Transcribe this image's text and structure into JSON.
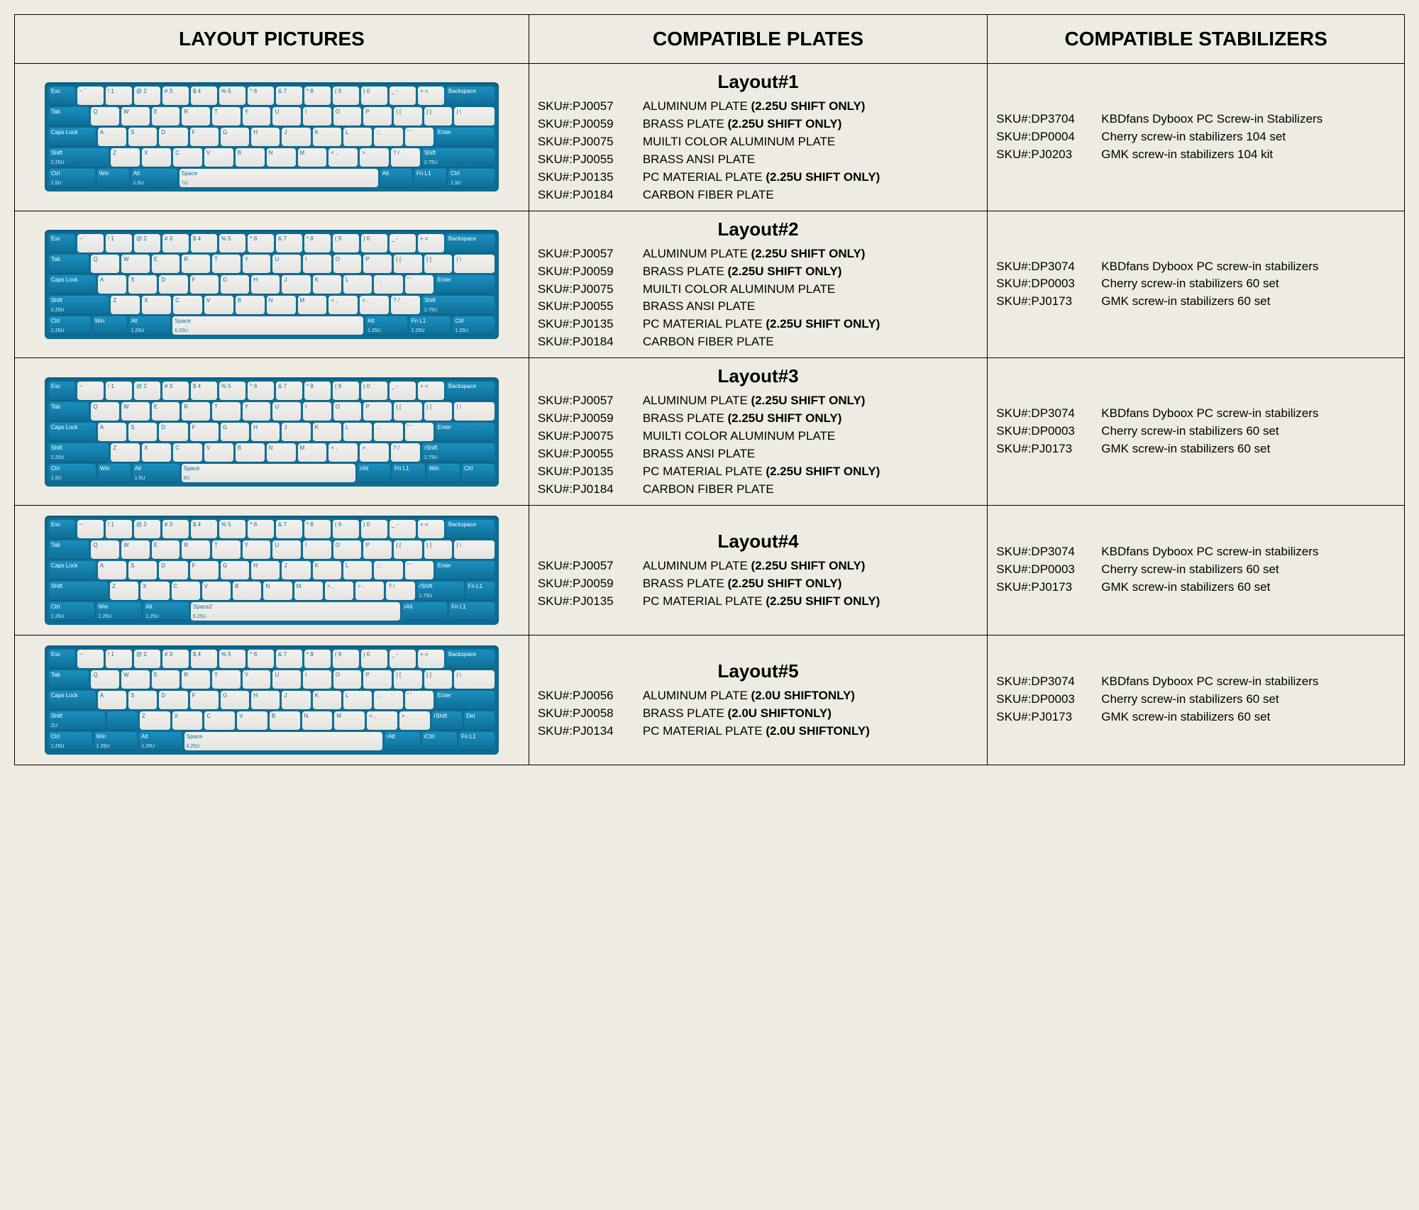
{
  "headers": {
    "pictures": "LAYOUT PICTURES",
    "plates": "COMPATIBLE PLATES",
    "stabs": "COMPATIBLE STABILIZERS"
  },
  "colors": {
    "page_bg": "#edebe2",
    "border": "#000000",
    "kb_case": "#0e6f97",
    "key_light_top": "#f2f1ee",
    "key_light_bot": "#e5e4e0",
    "key_mod_top": "#1a8fbf",
    "key_mod_bot": "#0e6f97",
    "key_legend": "#0e6f97",
    "mod_legend": "#ffffff"
  },
  "keyboard": {
    "row0": [
      "Esc",
      "~ `",
      "! 1",
      "@ 2",
      "# 3",
      "$ 4",
      "% 5",
      "^ 6",
      "& 7",
      "* 8",
      "( 9",
      ") 0",
      "_ -",
      "+ =",
      "Backspace"
    ],
    "row1": [
      "Tab",
      "Q",
      "W",
      "E",
      "R",
      "T",
      "Y",
      "U",
      "I",
      "O",
      "P",
      "{ [",
      "} ]",
      "| \\"
    ],
    "row2": [
      "Caps Lock",
      "A",
      "S",
      "D",
      "F",
      "G",
      "H",
      "J",
      "K",
      "L",
      ": ;",
      "\" '",
      "Enter"
    ],
    "labels": {
      "shift": "Shift",
      "rshift": "rShift",
      "ctrl": "Ctrl",
      "rctrl": "rCtrl",
      "win": "Win",
      "alt": "Alt",
      "ralt": "rAlt",
      "fn": "Fn L1",
      "space": "Space",
      "space2": "Space2",
      "del": "Del"
    },
    "bottom_sizes": {
      "u125": "1.25U",
      "u15": "1.5U",
      "u175": "1.75U",
      "u2": "2U",
      "u225": "2.25U",
      "u275": "2.75U",
      "u6": "6U",
      "u625": "6.25U",
      "u7": "7U"
    }
  },
  "layouts": [
    {
      "title": "Layout#1",
      "kb_variant": "A",
      "plates": [
        {
          "sku": "SKU#:PJ0057",
          "desc": "ALUMINUM PLATE",
          "bold": "(2.25U SHIFT ONLY)"
        },
        {
          "sku": "SKU#:PJ0059",
          "desc": "BRASS PLATE",
          "bold": "(2.25U SHIFT ONLY)"
        },
        {
          "sku": "SKU#:PJ0075",
          "desc": "MUILTI COLOR ALUMINUM PLATE",
          "bold": ""
        },
        {
          "sku": "SKU#:PJ0055",
          "desc": "BRASS ANSI PLATE",
          "bold": ""
        },
        {
          "sku": "SKU#:PJ0135",
          "desc": "PC MATERIAL PLATE",
          "bold": "(2.25U SHIFT ONLY)"
        },
        {
          "sku": "SKU#:PJ0184",
          "desc": "CARBON FIBER PLATE",
          "bold": ""
        }
      ],
      "stabs": [
        {
          "sku": "SKU#:DP3704",
          "desc": "KBDfans Dyboox PC Screw-in Stabilizers"
        },
        {
          "sku": "SKU#:DP0004",
          "desc": "Cherry screw-in stabilizers 104 set"
        },
        {
          "sku": "SKU#:PJ0203",
          "desc": "GMK screw-in stabilizers 104 kit"
        }
      ]
    },
    {
      "title": "Layout#2",
      "kb_variant": "B",
      "plates": [
        {
          "sku": "SKU#:PJ0057",
          "desc": "ALUMINUM PLATE",
          "bold": "(2.25U SHIFT ONLY)"
        },
        {
          "sku": "SKU#:PJ0059",
          "desc": "BRASS PLATE",
          "bold": "(2.25U SHIFT ONLY)"
        },
        {
          "sku": "SKU#:PJ0075",
          "desc": "MUILTI COLOR ALUMINUM PLATE",
          "bold": ""
        },
        {
          "sku": "SKU#:PJ0055",
          "desc": "BRASS ANSI PLATE",
          "bold": ""
        },
        {
          "sku": "SKU#:PJ0135",
          "desc": "PC MATERIAL PLATE",
          "bold": "(2.25U SHIFT ONLY)"
        },
        {
          "sku": "SKU#:PJ0184",
          "desc": "CARBON FIBER PLATE",
          "bold": ""
        }
      ],
      "stabs": [
        {
          "sku": "SKU#:DP3074",
          "desc": "KBDfans Dyboox PC screw-in stabilizers"
        },
        {
          "sku": "SKU#:DP0003",
          "desc": "Cherry screw-in stabilizers 60 set"
        },
        {
          "sku": "SKU#:PJ0173",
          "desc": "GMK screw-in stabilizers 60 set"
        }
      ]
    },
    {
      "title": "Layout#3",
      "kb_variant": "C",
      "plates": [
        {
          "sku": "SKU#:PJ0057",
          "desc": "ALUMINUM PLATE",
          "bold": "(2.25U SHIFT ONLY)"
        },
        {
          "sku": "SKU#:PJ0059",
          "desc": "BRASS PLATE",
          "bold": "(2.25U SHIFT ONLY)"
        },
        {
          "sku": "SKU#:PJ0075",
          "desc": "MUILTI COLOR ALUMINUM PLATE",
          "bold": ""
        },
        {
          "sku": "SKU#:PJ0055",
          "desc": "BRASS ANSI PLATE",
          "bold": ""
        },
        {
          "sku": "SKU#:PJ0135",
          "desc": "PC MATERIAL PLATE",
          "bold": "(2.25U SHIFT ONLY)"
        },
        {
          "sku": "SKU#:PJ0184",
          "desc": "CARBON FIBER PLATE",
          "bold": ""
        }
      ],
      "stabs": [
        {
          "sku": "SKU#:DP3074",
          "desc": "KBDfans Dyboox PC screw-in stabilizers"
        },
        {
          "sku": "SKU#:DP0003",
          "desc": "Cherry screw-in stabilizers 60 set"
        },
        {
          "sku": "SKU#:PJ0173",
          "desc": "GMK screw-in stabilizers 60 set"
        }
      ]
    },
    {
      "title": "Layout#4",
      "kb_variant": "D",
      "plates": [
        {
          "sku": "SKU#:PJ0057",
          "desc": "ALUMINUM PLATE",
          "bold": "(2.25U SHIFT ONLY)"
        },
        {
          "sku": "SKU#:PJ0059",
          "desc": "BRASS PLATE",
          "bold": "(2.25U SHIFT ONLY)"
        },
        {
          "sku": "SKU#:PJ0135",
          "desc": "PC MATERIAL PLATE",
          "bold": "(2.25U SHIFT ONLY)"
        }
      ],
      "stabs": [
        {
          "sku": "SKU#:DP3074",
          "desc": "KBDfans Dyboox PC screw-in stabilizers"
        },
        {
          "sku": "SKU#:DP0003",
          "desc": "Cherry screw-in stabilizers 60 set"
        },
        {
          "sku": "SKU#:PJ0173",
          "desc": "GMK screw-in stabilizers 60 set"
        }
      ]
    },
    {
      "title": "Layout#5",
      "kb_variant": "E",
      "plates": [
        {
          "sku": "SKU#:PJ0056",
          "desc": "ALUMINUM PLATE",
          "bold": "(2.0U SHIFTONLY)"
        },
        {
          "sku": "SKU#:PJ0058",
          "desc": "BRASS PLATE",
          "bold": "(2.0U SHIFTONLY)"
        },
        {
          "sku": "SKU#:PJ0134",
          "desc": "PC MATERIAL PLATE",
          "bold": "(2.0U SHIFTONLY)"
        }
      ],
      "stabs": [
        {
          "sku": "SKU#:DP3074",
          "desc": "KBDfans Dyboox PC screw-in stabilizers"
        },
        {
          "sku": "SKU#:DP0003",
          "desc": "Cherry screw-in stabilizers 60 set"
        },
        {
          "sku": "SKU#:PJ0173",
          "desc": "GMK screw-in stabilizers 60 set"
        }
      ]
    }
  ]
}
